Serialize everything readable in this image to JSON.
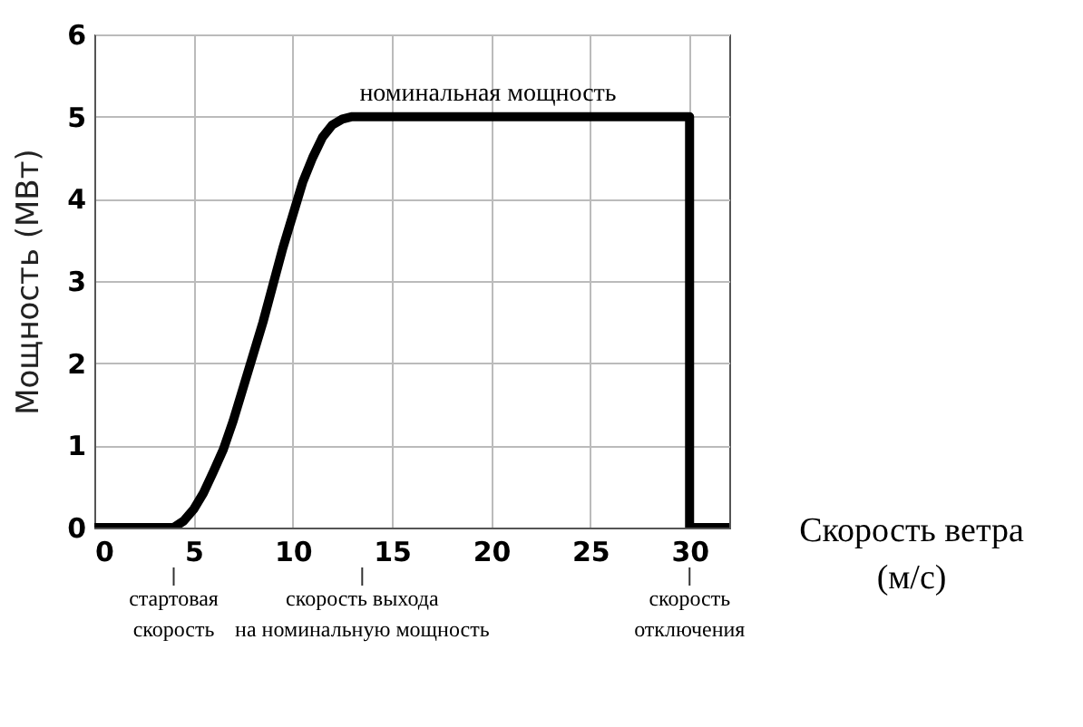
{
  "chart_data": {
    "type": "line",
    "xlabel": "Скорость ветра (м/с)",
    "ylabel": "Мощность (МВт)",
    "x": [
      0,
      4,
      4.5,
      5,
      5.5,
      6,
      6.5,
      7,
      7.5,
      8,
      8.5,
      9,
      9.5,
      10,
      10.5,
      11,
      11.5,
      12,
      12.5,
      13,
      30,
      30,
      32
    ],
    "series": [
      {
        "color": "#000000",
        "values": [
          0,
          0,
          0.08,
          0.22,
          0.42,
          0.68,
          0.95,
          1.3,
          1.7,
          2.1,
          2.5,
          2.95,
          3.4,
          3.8,
          4.2,
          4.5,
          4.75,
          4.9,
          4.97,
          5,
          5,
          0,
          0
        ]
      }
    ],
    "xlim": [
      0,
      32
    ],
    "xticks": [
      0,
      5,
      10,
      15,
      20,
      25,
      30
    ],
    "ylim": [
      0,
      6
    ],
    "yticks": [
      0,
      1,
      2,
      3,
      4,
      5,
      6
    ],
    "grid": true,
    "marker": "none",
    "line_style": "solid",
    "annotations": [
      "номинальная мощность"
    ],
    "ref_lines": [
      {
        "axis": "x",
        "value": 4,
        "label": "стартовая\nскорость"
      },
      {
        "axis": "x",
        "value": 13.5,
        "label": "скорость выхода\nна номинальную мощность"
      },
      {
        "axis": "x",
        "value": 30,
        "label": "скорость\nотключения"
      }
    ]
  }
}
